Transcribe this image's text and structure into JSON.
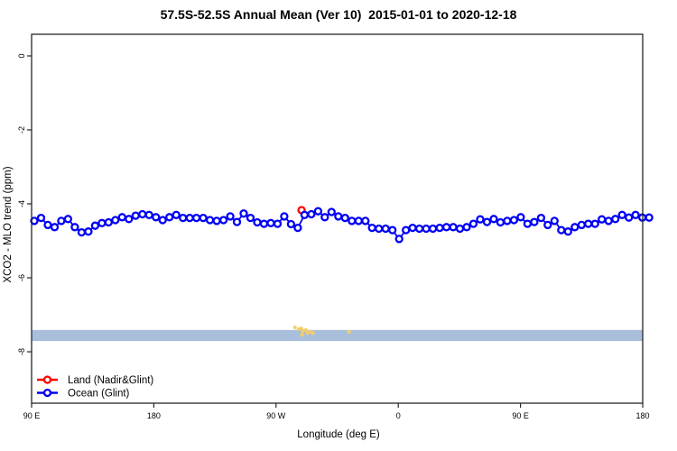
{
  "chart_data": {
    "type": "line",
    "title": "57.5S-52.5S Annual Mean (Ver 10)  2015-01-01 to 2020-12-18",
    "xlabel": "Longitude (deg E)",
    "ylabel": "XCO2 - MLO trend (ppm)",
    "xlim": [
      90,
      540
    ],
    "ylim": [
      -9.39,
      0.585
    ],
    "grid": "off",
    "x_ticks": [
      {
        "lon": 90,
        "label": "90 E"
      },
      {
        "lon": 180,
        "label": "180"
      },
      {
        "lon": 270,
        "label": "90 W"
      },
      {
        "lon": 360,
        "label": "0"
      },
      {
        "lon": 450,
        "label": "90 E"
      },
      {
        "lon": 540,
        "label": "180"
      }
    ],
    "y_ticks": [
      {
        "value": 0,
        "label": "0"
      },
      {
        "value": -2,
        "label": "-2"
      },
      {
        "value": -4,
        "label": "-4"
      },
      {
        "value": -6,
        "label": "-6"
      },
      {
        "value": -8,
        "label": "-8"
      }
    ],
    "legend": {
      "position": "bottom-left",
      "items": [
        {
          "label": "Land (Nadir&Glint)",
          "color": "#ff0000"
        },
        {
          "label": "Ocean (Glint)",
          "color": "#0000f5"
        }
      ]
    },
    "colors": {
      "ocean": "#0000f5",
      "land": "#ff0000",
      "band": "#a9bedb",
      "specks": "#f2cd6b",
      "axis": "#262626"
    },
    "band": {
      "description": "horizontal shaded band",
      "top_value": -7.41,
      "bottom_value": -7.71
    },
    "series": [
      {
        "name": "Ocean (Glint)",
        "marker": "open-circle",
        "lon_start": 92,
        "lon_step": 4.975,
        "values": [
          -4.46,
          -4.38,
          -4.57,
          -4.63,
          -4.46,
          -4.41,
          -4.63,
          -4.77,
          -4.75,
          -4.59,
          -4.52,
          -4.5,
          -4.44,
          -4.36,
          -4.41,
          -4.32,
          -4.28,
          -4.3,
          -4.36,
          -4.44,
          -4.36,
          -4.3,
          -4.38,
          -4.38,
          -4.38,
          -4.38,
          -4.44,
          -4.46,
          -4.44,
          -4.34,
          -4.49,
          -4.26,
          -4.38,
          -4.5,
          -4.54,
          -4.52,
          -4.54,
          -4.34,
          -4.55,
          -4.65,
          -4.3,
          -4.28,
          -4.2,
          -4.36,
          -4.22,
          -4.34,
          -4.38,
          -4.46,
          -4.46,
          -4.46,
          -4.65,
          -4.67,
          -4.67,
          -4.71,
          -4.95,
          -4.71,
          -4.65,
          -4.67,
          -4.67,
          -4.67,
          -4.65,
          -4.63,
          -4.63,
          -4.67,
          -4.63,
          -4.54,
          -4.42,
          -4.49,
          -4.41,
          -4.5,
          -4.46,
          -4.44,
          -4.36,
          -4.54,
          -4.49,
          -4.38,
          -4.57,
          -4.46,
          -4.71,
          -4.75,
          -4.63,
          -4.57,
          -4.54,
          -4.54,
          -4.42,
          -4.46,
          -4.41,
          -4.3,
          -4.37,
          -4.3,
          -4.37,
          -4.37
        ]
      },
      {
        "name": "Land (Nadir&Glint)",
        "marker": "open-circle",
        "points": [
          {
            "lon": 288.8,
            "value": -4.17
          }
        ]
      }
    ],
    "specks": [
      [
        283.9,
        -7.34
      ],
      [
        286.6,
        -7.39
      ],
      [
        288.6,
        -7.37
      ],
      [
        289.9,
        -7.44
      ],
      [
        291.9,
        -7.41
      ],
      [
        293.2,
        -7.49
      ],
      [
        295.2,
        -7.46
      ],
      [
        297.2,
        -7.49
      ],
      [
        289.2,
        -7.54
      ],
      [
        323.8,
        -7.46
      ]
    ]
  }
}
